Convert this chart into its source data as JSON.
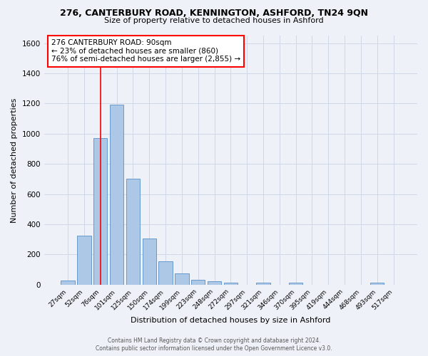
{
  "title": "276, CANTERBURY ROAD, KENNINGTON, ASHFORD, TN24 9QN",
  "subtitle": "Size of property relative to detached houses in Ashford",
  "xlabel": "Distribution of detached houses by size in Ashford",
  "ylabel": "Number of detached properties",
  "footer_line1": "Contains HM Land Registry data © Crown copyright and database right 2024.",
  "footer_line2": "Contains public sector information licensed under the Open Government Licence v3.0.",
  "bar_labels": [
    "27sqm",
    "52sqm",
    "76sqm",
    "101sqm",
    "125sqm",
    "150sqm",
    "174sqm",
    "199sqm",
    "223sqm",
    "248sqm",
    "272sqm",
    "297sqm",
    "321sqm",
    "346sqm",
    "370sqm",
    "395sqm",
    "419sqm",
    "444sqm",
    "468sqm",
    "493sqm",
    "517sqm"
  ],
  "bar_values": [
    25,
    325,
    970,
    1190,
    700,
    305,
    155,
    75,
    30,
    20,
    12,
    0,
    12,
    0,
    15,
    0,
    0,
    0,
    0,
    12,
    0
  ],
  "bar_color": "#adc8e6",
  "bar_edge_color": "#6699cc",
  "grid_color": "#d0d8e8",
  "background_color": "#eef2f8",
  "red_line_index": 2,
  "annotation_line1": "276 CANTERBURY ROAD: 90sqm",
  "annotation_line2": "← 23% of detached houses are smaller (860)",
  "annotation_line3": "76% of semi-detached houses are larger (2,855) →",
  "annotation_box_color": "white",
  "annotation_box_edge": "red",
  "ylim": [
    0,
    1650
  ],
  "yticks": [
    0,
    200,
    400,
    600,
    800,
    1000,
    1200,
    1400,
    1600
  ]
}
